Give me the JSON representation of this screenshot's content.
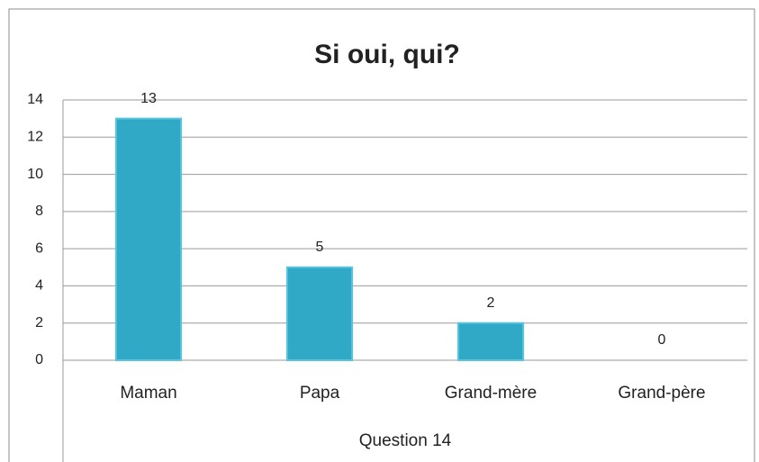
{
  "chart_data": {
    "type": "bar",
    "title": "Si oui, qui?",
    "categories": [
      "Maman",
      "Papa",
      "Grand-mère",
      "Grand-père"
    ],
    "values": [
      13,
      5,
      2,
      0
    ],
    "color": "#2fa9c6",
    "x_label": "Question 14",
    "ylim": [
      0,
      14
    ],
    "yticks": [
      0,
      2,
      4,
      6,
      8,
      10,
      12,
      14
    ],
    "grid": true
  }
}
